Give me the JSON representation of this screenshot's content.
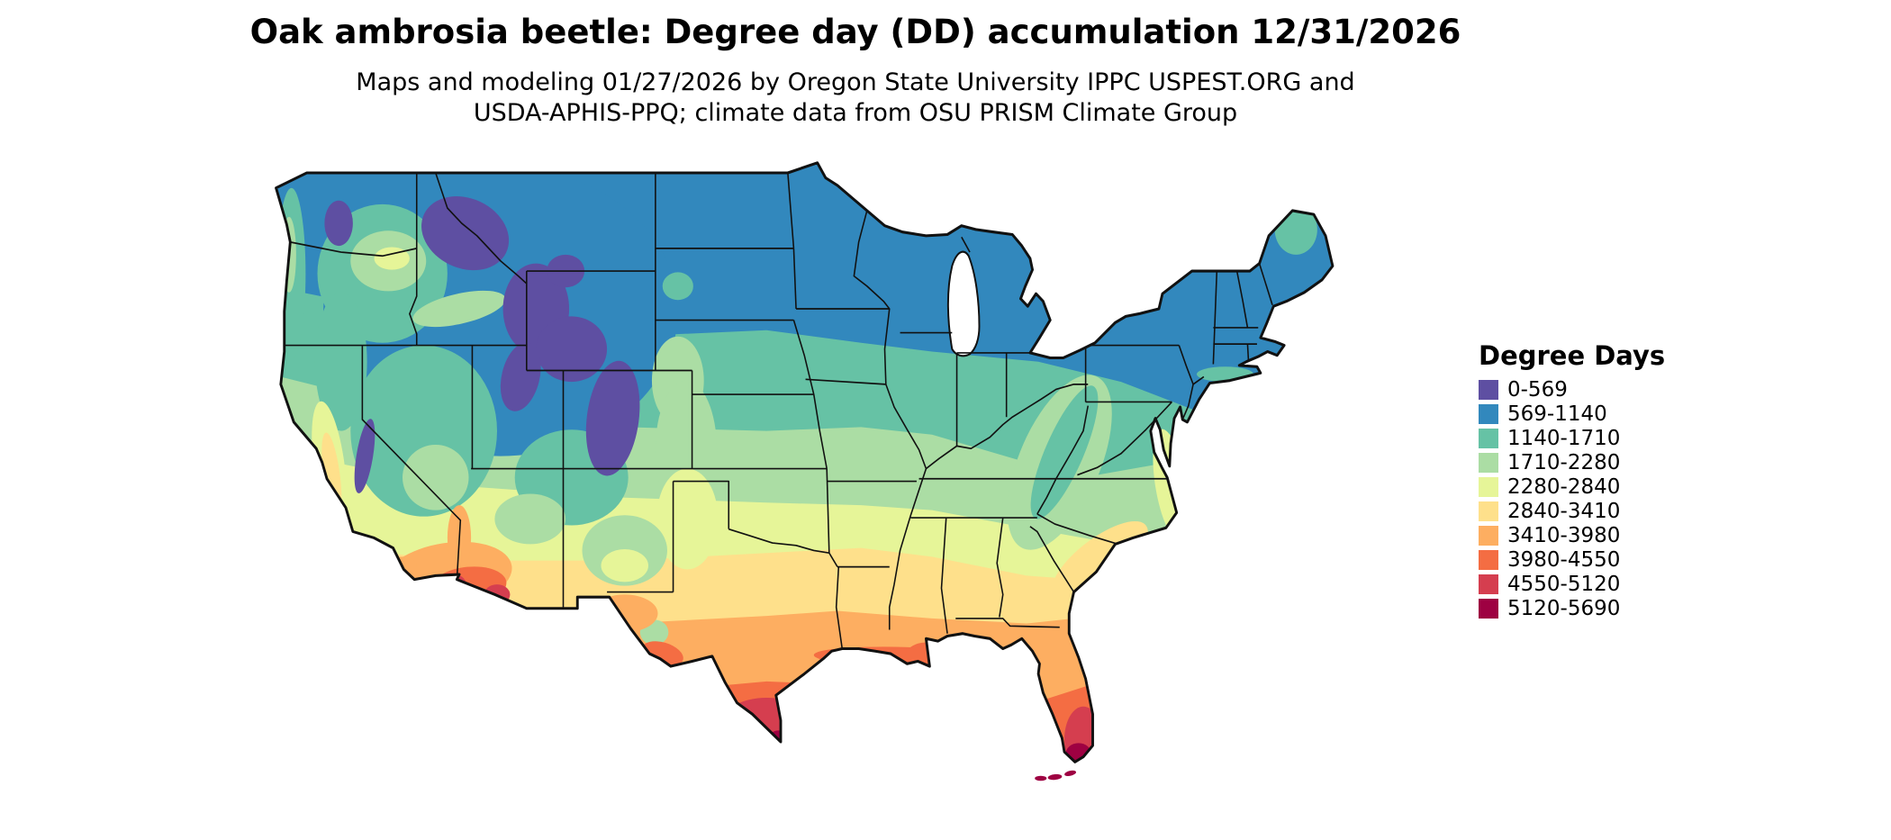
{
  "header": {
    "title": "Oak ambrosia beetle: Degree day (DD) accumulation 12/31/2026",
    "subtitle_line1": "Maps and modeling 01/27/2026 by Oregon State University IPPC USPEST.ORG and",
    "subtitle_line2": "USDA-APHIS-PPQ; climate data from OSU PRISM Climate Group"
  },
  "legend": {
    "title": "Degree Days",
    "entries": [
      {
        "label": "0-569",
        "color": "#5e4fa2"
      },
      {
        "label": "569-1140",
        "color": "#3288bd"
      },
      {
        "label": "1140-1710",
        "color": "#66c2a5"
      },
      {
        "label": "1710-2280",
        "color": "#abdda4"
      },
      {
        "label": "2280-2840",
        "color": "#e6f598"
      },
      {
        "label": "2840-3410",
        "color": "#fee08b"
      },
      {
        "label": "3410-3980",
        "color": "#fdae61"
      },
      {
        "label": "3980-4550",
        "color": "#f46d43"
      },
      {
        "label": "4550-5120",
        "color": "#d53e4f"
      },
      {
        "label": "5120-5690",
        "color": "#9e0142"
      }
    ]
  },
  "map": {
    "description": "Continental United States choropleth of accumulated degree days; cool colors (purple, blue) in the north and mountain west, warm colors (orange, red) across the south, south Texas and south Florida"
  }
}
